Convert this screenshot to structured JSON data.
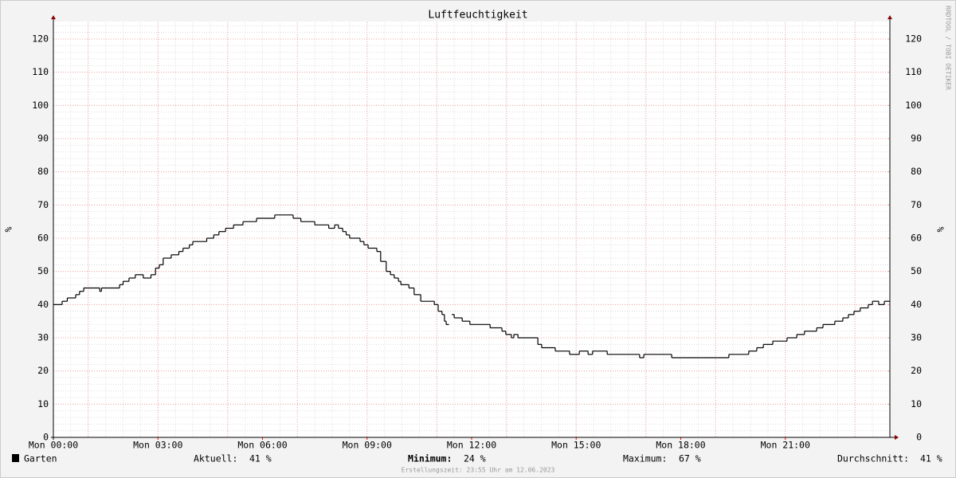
{
  "chart_data": {
    "type": "step",
    "title": "Luftfeuchtigkeit",
    "y_label": "%",
    "side_note": "RRDTOOL / TOBI OETIKER",
    "footer": "Erstellungszeit: 23:55 Uhr am 12.06.2023",
    "xlim": [
      0,
      24
    ],
    "xticks": [
      {
        "value": 0,
        "label": "Mon 00:00"
      },
      {
        "value": 3,
        "label": "Mon 03:00"
      },
      {
        "value": 6,
        "label": "Mon 06:00"
      },
      {
        "value": 9,
        "label": "Mon 09:00"
      },
      {
        "value": 12,
        "label": "Mon 12:00"
      },
      {
        "value": 15,
        "label": "Mon 15:00"
      },
      {
        "value": 18,
        "label": "Mon 18:00"
      },
      {
        "value": 21,
        "label": "Mon 21:00"
      }
    ],
    "ylim": [
      0,
      125
    ],
    "yticks": [
      0,
      10,
      20,
      30,
      40,
      50,
      60,
      70,
      80,
      90,
      100,
      110,
      120
    ],
    "y2lim": [
      0,
      125
    ],
    "y2ticks": [
      0,
      10,
      20,
      30,
      40,
      50,
      60,
      70,
      80,
      90,
      100,
      110,
      120
    ],
    "grid": true,
    "x": [
      0,
      0.25,
      0.4,
      0.64,
      0.75,
      0.87,
      1.33,
      1.38,
      1.9,
      2.0,
      2.17,
      2.35,
      2.58,
      2.8,
      2.93,
      3.04,
      3.15,
      3.38,
      3.6,
      3.72,
      3.9,
      4.0,
      4.4,
      4.6,
      4.75,
      4.94,
      5.17,
      5.44,
      5.83,
      6.35,
      6.88,
      7.1,
      7.5,
      7.9,
      8.07,
      8.18,
      8.3,
      8.4,
      8.5,
      8.8,
      8.91,
      9.03,
      9.28,
      9.39,
      9.55,
      9.67,
      9.78,
      9.9,
      9.97,
      10.2,
      10.35,
      10.54,
      10.93,
      11.04,
      11.15,
      11.22,
      11.27,
      11.35,
      11.43,
      11.5,
      11.73,
      11.95,
      12.53,
      12.87,
      12.98,
      13.14,
      13.21,
      13.33,
      13.9,
      14.01,
      14.4,
      14.81,
      15.09,
      15.34,
      15.47,
      15.89,
      16.82,
      16.94,
      17.74,
      19.38,
      19.95,
      20.18,
      20.37,
      20.64,
      21.05,
      21.33,
      21.55,
      21.9,
      22.08,
      22.42,
      22.65,
      22.81,
      22.97,
      23.15,
      23.38,
      23.5,
      23.68,
      23.84
    ],
    "series": [
      {
        "name": "Garten",
        "color": "#000000",
        "values": [
          40,
          41,
          42,
          43,
          44,
          45,
          44,
          45,
          46,
          47,
          48,
          49,
          48,
          49,
          51,
          52,
          54,
          55,
          56,
          57,
          58,
          59,
          60,
          61,
          62,
          63,
          64,
          65,
          66,
          67,
          66,
          65,
          64,
          63,
          64,
          63,
          62,
          61,
          60,
          59,
          58,
          57,
          56,
          53,
          50,
          49,
          48,
          47,
          46,
          45,
          43,
          41,
          40,
          38,
          37,
          35,
          34,
          null,
          37,
          36,
          35,
          34,
          33,
          32,
          31,
          30,
          31,
          30,
          28,
          27,
          26,
          25,
          26,
          25,
          26,
          25,
          24,
          25,
          24,
          25,
          26,
          27,
          28,
          29,
          30,
          31,
          32,
          33,
          34,
          35,
          36,
          37,
          38,
          39,
          40,
          41,
          40,
          41
        ]
      }
    ],
    "stats": [
      {
        "label": "Aktuell:",
        "value": "41 %"
      },
      {
        "label": "Minimum:",
        "value": "24 %"
      },
      {
        "label": "Maximum:",
        "value": "67 %"
      },
      {
        "label": "Durchschnitt:",
        "value": "41 %"
      }
    ]
  }
}
